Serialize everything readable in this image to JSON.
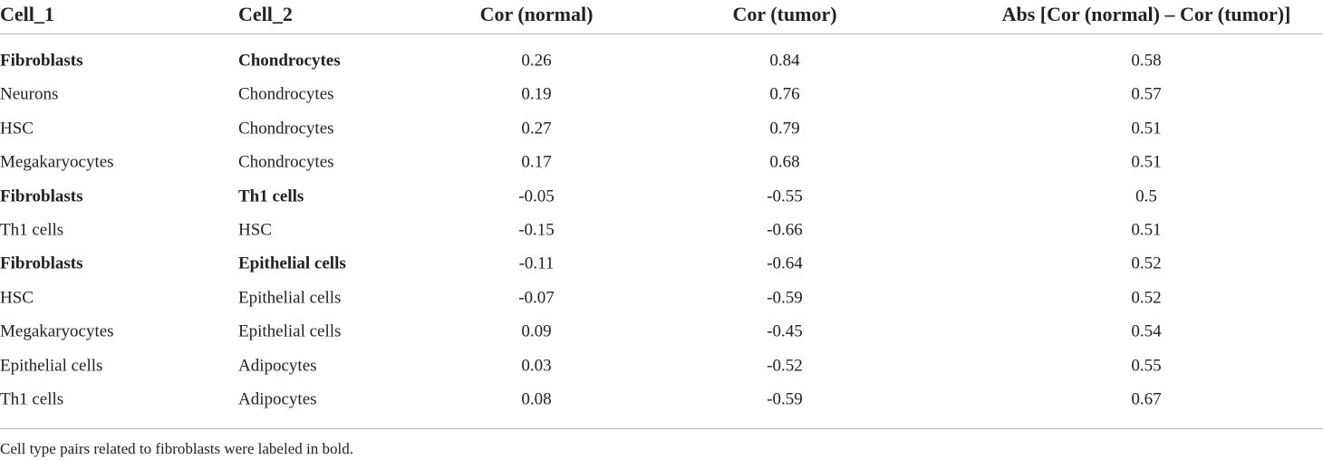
{
  "table": {
    "columns": [
      "Cell_1",
      "Cell_2",
      "Cor (normal)",
      "Cor (tumor)",
      "Abs [Cor (normal) – Cor (tumor)]"
    ],
    "rows": [
      {
        "cells": [
          "Fibroblasts",
          "Chondrocytes",
          "0.26",
          "0.84",
          "0.58"
        ],
        "bold": true
      },
      {
        "cells": [
          "Neurons",
          "Chondrocytes",
          "0.19",
          "0.76",
          "0.57"
        ],
        "bold": false
      },
      {
        "cells": [
          "HSC",
          "Chondrocytes",
          "0.27",
          "0.79",
          "0.51"
        ],
        "bold": false
      },
      {
        "cells": [
          "Megakaryocytes",
          "Chondrocytes",
          "0.17",
          "0.68",
          "0.51"
        ],
        "bold": false
      },
      {
        "cells": [
          "Fibroblasts",
          "Th1 cells",
          "-0.05",
          "-0.55",
          "0.5"
        ],
        "bold": true
      },
      {
        "cells": [
          "Th1 cells",
          "HSC",
          "-0.15",
          "-0.66",
          "0.51"
        ],
        "bold": false
      },
      {
        "cells": [
          "Fibroblasts",
          "Epithelial cells",
          "-0.11",
          "-0.64",
          "0.52"
        ],
        "bold": true
      },
      {
        "cells": [
          "HSC",
          "Epithelial cells",
          "-0.07",
          "-0.59",
          "0.52"
        ],
        "bold": false
      },
      {
        "cells": [
          "Megakaryocytes",
          "Epithelial cells",
          "0.09",
          "-0.45",
          "0.54"
        ],
        "bold": false
      },
      {
        "cells": [
          "Epithelial cells",
          "Adipocytes",
          "0.03",
          "-0.52",
          "0.55"
        ],
        "bold": false
      },
      {
        "cells": [
          "Th1 cells",
          "Adipocytes",
          "0.08",
          "-0.59",
          "0.67"
        ],
        "bold": false
      }
    ],
    "footnote": "Cell type pairs related to fibroblasts were labeled in bold."
  }
}
